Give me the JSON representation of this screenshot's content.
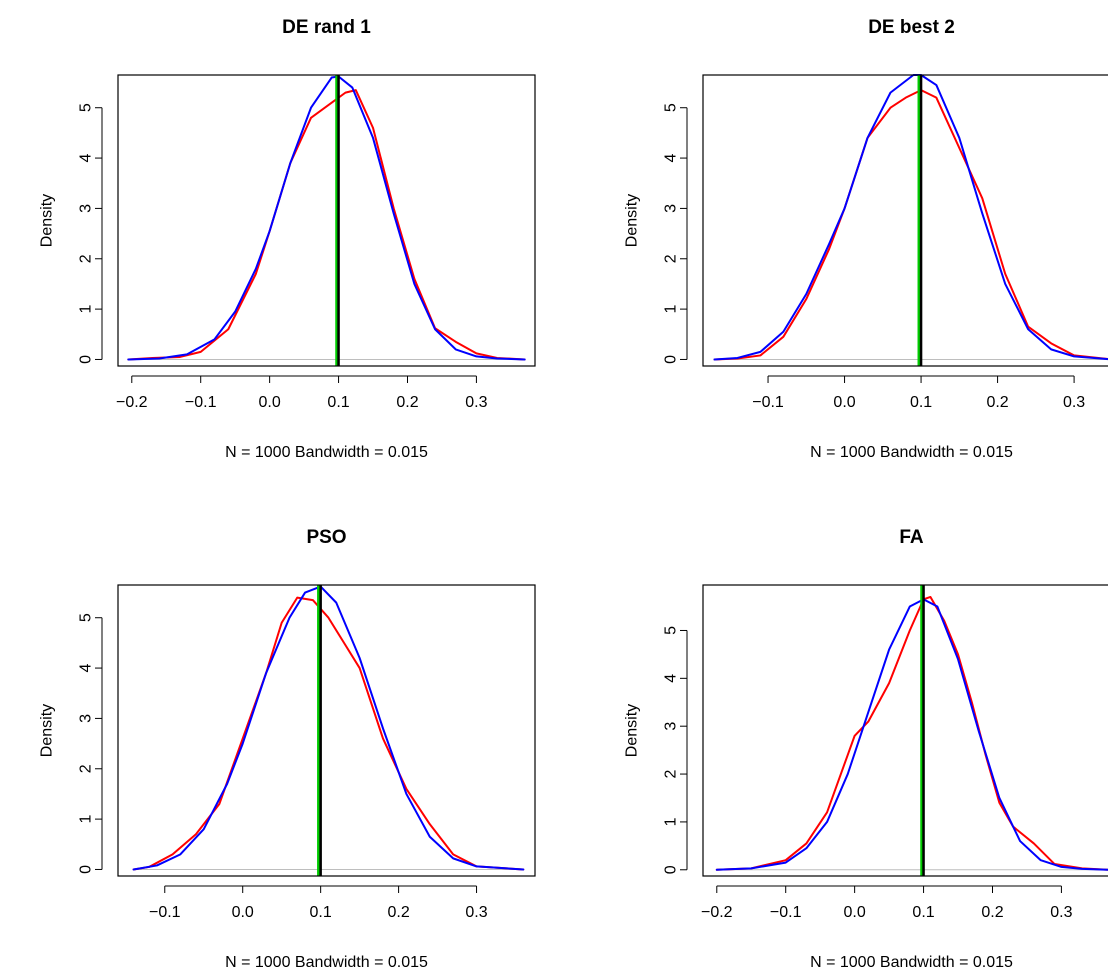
{
  "chart_data": [
    {
      "type": "line",
      "title": "DE rand 1",
      "xlabel": "N = 1000   Bandwidth = 0.015",
      "ylabel": "Density",
      "xlim": [
        -0.22,
        0.385
      ],
      "ylim": [
        -0.13,
        5.65
      ],
      "xticks": [
        -0.2,
        -0.1,
        0.0,
        0.1,
        0.2,
        0.3
      ],
      "xtick_labels": [
        "−0.2",
        "−0.1",
        "0.0",
        "0.1",
        "0.2",
        "0.3"
      ],
      "yticks": [
        0,
        1,
        2,
        3,
        4,
        5
      ],
      "ytick_labels": [
        "0",
        "1",
        "2",
        "3",
        "4",
        "5"
      ],
      "vlines": [
        {
          "x": 0.097,
          "color": "#00cc00"
        },
        {
          "x": 0.1,
          "color": "#000000"
        }
      ],
      "series": [
        {
          "color": "#ff0000",
          "x": [
            -0.205,
            -0.17,
            -0.13,
            -0.1,
            -0.06,
            -0.02,
            0.0,
            0.03,
            0.06,
            0.09,
            0.11,
            0.125,
            0.15,
            0.18,
            0.21,
            0.24,
            0.27,
            0.3,
            0.33,
            0.37
          ],
          "y": [
            0.0,
            0.03,
            0.05,
            0.15,
            0.6,
            1.7,
            2.55,
            3.9,
            4.8,
            5.1,
            5.3,
            5.35,
            4.6,
            3.0,
            1.6,
            0.62,
            0.35,
            0.12,
            0.03,
            0.0
          ]
        },
        {
          "color": "#0000ff",
          "x": [
            -0.205,
            -0.16,
            -0.12,
            -0.08,
            -0.05,
            -0.02,
            0.0,
            0.03,
            0.06,
            0.09,
            0.1,
            0.12,
            0.15,
            0.18,
            0.21,
            0.24,
            0.27,
            0.3,
            0.33,
            0.37
          ],
          "y": [
            0.0,
            0.02,
            0.1,
            0.4,
            0.95,
            1.8,
            2.55,
            3.9,
            5.0,
            5.6,
            5.62,
            5.4,
            4.4,
            2.9,
            1.5,
            0.6,
            0.2,
            0.06,
            0.02,
            0.0
          ]
        }
      ]
    },
    {
      "type": "line",
      "title": "DE best 2",
      "xlabel": "N = 1000   Bandwidth = 0.015",
      "ylabel": "Density",
      "xlim": [
        -0.185,
        0.36
      ],
      "ylim": [
        -0.13,
        5.65
      ],
      "xticks": [
        -0.1,
        0.0,
        0.1,
        0.2,
        0.3
      ],
      "xtick_labels": [
        "−0.1",
        "0.0",
        "0.1",
        "0.2",
        "0.3"
      ],
      "yticks": [
        0,
        1,
        2,
        3,
        4,
        5
      ],
      "ytick_labels": [
        "0",
        "1",
        "2",
        "3",
        "4",
        "5"
      ],
      "vlines": [
        {
          "x": 0.097,
          "color": "#00cc00"
        },
        {
          "x": 0.1,
          "color": "#000000"
        }
      ],
      "series": [
        {
          "color": "#ff0000",
          "x": [
            -0.17,
            -0.14,
            -0.11,
            -0.08,
            -0.05,
            -0.02,
            0.0,
            0.03,
            0.06,
            0.08,
            0.1,
            0.12,
            0.15,
            0.18,
            0.21,
            0.24,
            0.27,
            0.3,
            0.35
          ],
          "y": [
            0.0,
            0.02,
            0.08,
            0.45,
            1.2,
            2.2,
            3.0,
            4.4,
            5.0,
            5.2,
            5.35,
            5.2,
            4.2,
            3.2,
            1.7,
            0.65,
            0.32,
            0.08,
            0.0
          ]
        },
        {
          "color": "#0000ff",
          "x": [
            -0.17,
            -0.14,
            -0.11,
            -0.08,
            -0.05,
            -0.02,
            0.0,
            0.03,
            0.06,
            0.09,
            0.1,
            0.12,
            0.15,
            0.18,
            0.21,
            0.24,
            0.27,
            0.3,
            0.35
          ],
          "y": [
            0.0,
            0.03,
            0.15,
            0.55,
            1.3,
            2.3,
            3.0,
            4.4,
            5.3,
            5.65,
            5.65,
            5.45,
            4.4,
            2.9,
            1.5,
            0.6,
            0.2,
            0.06,
            0.0
          ]
        }
      ]
    },
    {
      "type": "line",
      "title": "PSO",
      "xlabel": "N = 1000   Bandwidth = 0.015",
      "ylabel": "Density",
      "xlim": [
        -0.16,
        0.375
      ],
      "ylim": [
        -0.13,
        5.65
      ],
      "xticks": [
        -0.1,
        0.0,
        0.1,
        0.2,
        0.3
      ],
      "xtick_labels": [
        "−0.1",
        "0.0",
        "0.1",
        "0.2",
        "0.3"
      ],
      "yticks": [
        0,
        1,
        2,
        3,
        4,
        5
      ],
      "ytick_labels": [
        "0",
        "1",
        "2",
        "3",
        "4",
        "5"
      ],
      "vlines": [
        {
          "x": 0.097,
          "color": "#00cc00"
        },
        {
          "x": 0.1,
          "color": "#000000"
        }
      ],
      "series": [
        {
          "color": "#ff0000",
          "x": [
            -0.14,
            -0.12,
            -0.09,
            -0.06,
            -0.03,
            0.0,
            0.03,
            0.05,
            0.07,
            0.09,
            0.11,
            0.13,
            0.15,
            0.18,
            0.21,
            0.24,
            0.27,
            0.3,
            0.36
          ],
          "y": [
            0.0,
            0.05,
            0.3,
            0.7,
            1.3,
            2.6,
            3.9,
            4.9,
            5.4,
            5.35,
            5.0,
            4.5,
            4.0,
            2.6,
            1.6,
            0.9,
            0.3,
            0.06,
            0.0
          ]
        },
        {
          "color": "#0000ff",
          "x": [
            -0.14,
            -0.11,
            -0.08,
            -0.05,
            -0.02,
            0.0,
            0.03,
            0.06,
            0.08,
            0.1,
            0.12,
            0.15,
            0.18,
            0.21,
            0.24,
            0.27,
            0.3,
            0.36
          ],
          "y": [
            0.0,
            0.08,
            0.3,
            0.8,
            1.7,
            2.5,
            3.9,
            5.0,
            5.5,
            5.62,
            5.3,
            4.2,
            2.8,
            1.5,
            0.65,
            0.22,
            0.06,
            0.0
          ]
        }
      ]
    },
    {
      "type": "line",
      "title": "FA",
      "xlabel": "N = 1000   Bandwidth = 0.015",
      "ylabel": "Density",
      "xlim": [
        -0.22,
        0.385
      ],
      "ylim": [
        -0.13,
        5.95
      ],
      "xticks": [
        -0.2,
        -0.1,
        0.0,
        0.1,
        0.2,
        0.3
      ],
      "xtick_labels": [
        "−0.2",
        "−0.1",
        "0.0",
        "0.1",
        "0.2",
        "0.3"
      ],
      "yticks": [
        0,
        1,
        2,
        3,
        4,
        5
      ],
      "ytick_labels": [
        "0",
        "1",
        "2",
        "3",
        "4",
        "5"
      ],
      "vlines": [
        {
          "x": 0.097,
          "color": "#00cc00"
        },
        {
          "x": 0.1,
          "color": "#000000"
        }
      ],
      "series": [
        {
          "color": "#ff0000",
          "x": [
            -0.2,
            -0.15,
            -0.1,
            -0.07,
            -0.04,
            -0.01,
            0.0,
            0.02,
            0.05,
            0.08,
            0.1,
            0.11,
            0.13,
            0.15,
            0.17,
            0.19,
            0.21,
            0.23,
            0.26,
            0.29,
            0.33,
            0.37
          ],
          "y": [
            0.0,
            0.03,
            0.2,
            0.55,
            1.2,
            2.4,
            2.8,
            3.1,
            3.9,
            5.0,
            5.65,
            5.7,
            5.2,
            4.5,
            3.5,
            2.4,
            1.4,
            0.9,
            0.55,
            0.12,
            0.03,
            0.0
          ]
        },
        {
          "color": "#0000ff",
          "x": [
            -0.2,
            -0.15,
            -0.1,
            -0.07,
            -0.04,
            -0.01,
            0.02,
            0.05,
            0.08,
            0.1,
            0.12,
            0.15,
            0.18,
            0.21,
            0.24,
            0.27,
            0.3,
            0.33,
            0.37
          ],
          "y": [
            0.0,
            0.03,
            0.15,
            0.45,
            1.0,
            2.0,
            3.3,
            4.6,
            5.5,
            5.65,
            5.5,
            4.4,
            2.9,
            1.5,
            0.6,
            0.2,
            0.06,
            0.02,
            0.0
          ]
        }
      ]
    }
  ]
}
